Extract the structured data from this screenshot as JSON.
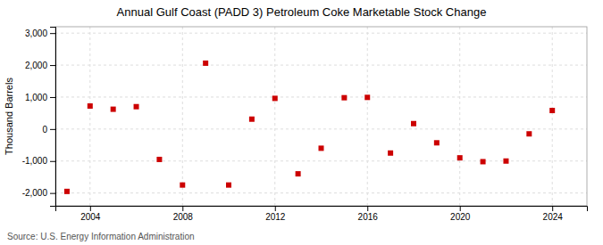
{
  "chart_data": {
    "type": "scatter",
    "title": "Annual Gulf Coast (PADD 3) Petroleum Coke Marketable Stock Change",
    "y_label": "Thousand Barrels",
    "source": "Source: U.S. Energy Information Administration",
    "x": [
      2003,
      2004,
      2005,
      2006,
      2007,
      2008,
      2009,
      2010,
      2011,
      2012,
      2013,
      2014,
      2015,
      2016,
      2017,
      2018,
      2019,
      2020,
      2021,
      2022,
      2023,
      2024
    ],
    "values": [
      -1950,
      720,
      620,
      700,
      -950,
      -1750,
      2060,
      -1750,
      310,
      960,
      -1400,
      -600,
      980,
      990,
      -750,
      170,
      -430,
      -900,
      -1020,
      -1000,
      -150,
      580
    ],
    "color": "#cc0000",
    "marker": "square",
    "xlim": [
      2002.5,
      2025.5
    ],
    "xticks": [
      2004,
      2008,
      2012,
      2016,
      2020,
      2024
    ],
    "ylim": [
      -2400,
      3200
    ],
    "yticks": [
      {
        "value": -2000,
        "label": "-2,000"
      },
      {
        "value": -1000,
        "label": "-1,000"
      },
      0,
      {
        "value": 1000,
        "label": "1,000"
      },
      {
        "value": 2000,
        "label": "2,000"
      },
      {
        "value": 3000,
        "label": "3,000"
      }
    ],
    "grid": true
  }
}
